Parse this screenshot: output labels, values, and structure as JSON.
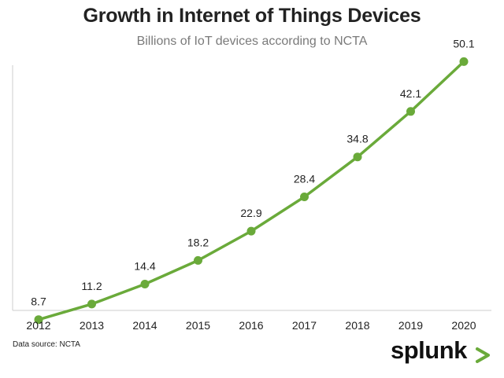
{
  "chart_data": {
    "type": "line",
    "title": "Growth in Internet of Things Devices",
    "subtitle": "Billions of IoT devices according to NCTA",
    "x": [
      "2012",
      "2013",
      "2014",
      "2015",
      "2016",
      "2017",
      "2018",
      "2019",
      "2020"
    ],
    "values": [
      8.7,
      11.2,
      14.4,
      18.2,
      22.9,
      28.4,
      34.8,
      42.1,
      50.1
    ],
    "data_labels": [
      "8.7",
      "11.2",
      "14.4",
      "18.2",
      "22.9",
      "28.4",
      "34.8",
      "42.1",
      "50.1"
    ],
    "ylim": [
      0,
      55
    ],
    "grid": false,
    "legend": "none",
    "xlabel": "",
    "ylabel": ""
  },
  "colors": {
    "line": "#6aaa3a",
    "marker": "#6aaa3a",
    "axis": "#cccccc",
    "title": "#222222",
    "subtitle": "#7a7a7a",
    "logo_accent": "#6aaa3a"
  },
  "source_note": "Data source: NCTA",
  "logo": {
    "text": "splunk"
  }
}
